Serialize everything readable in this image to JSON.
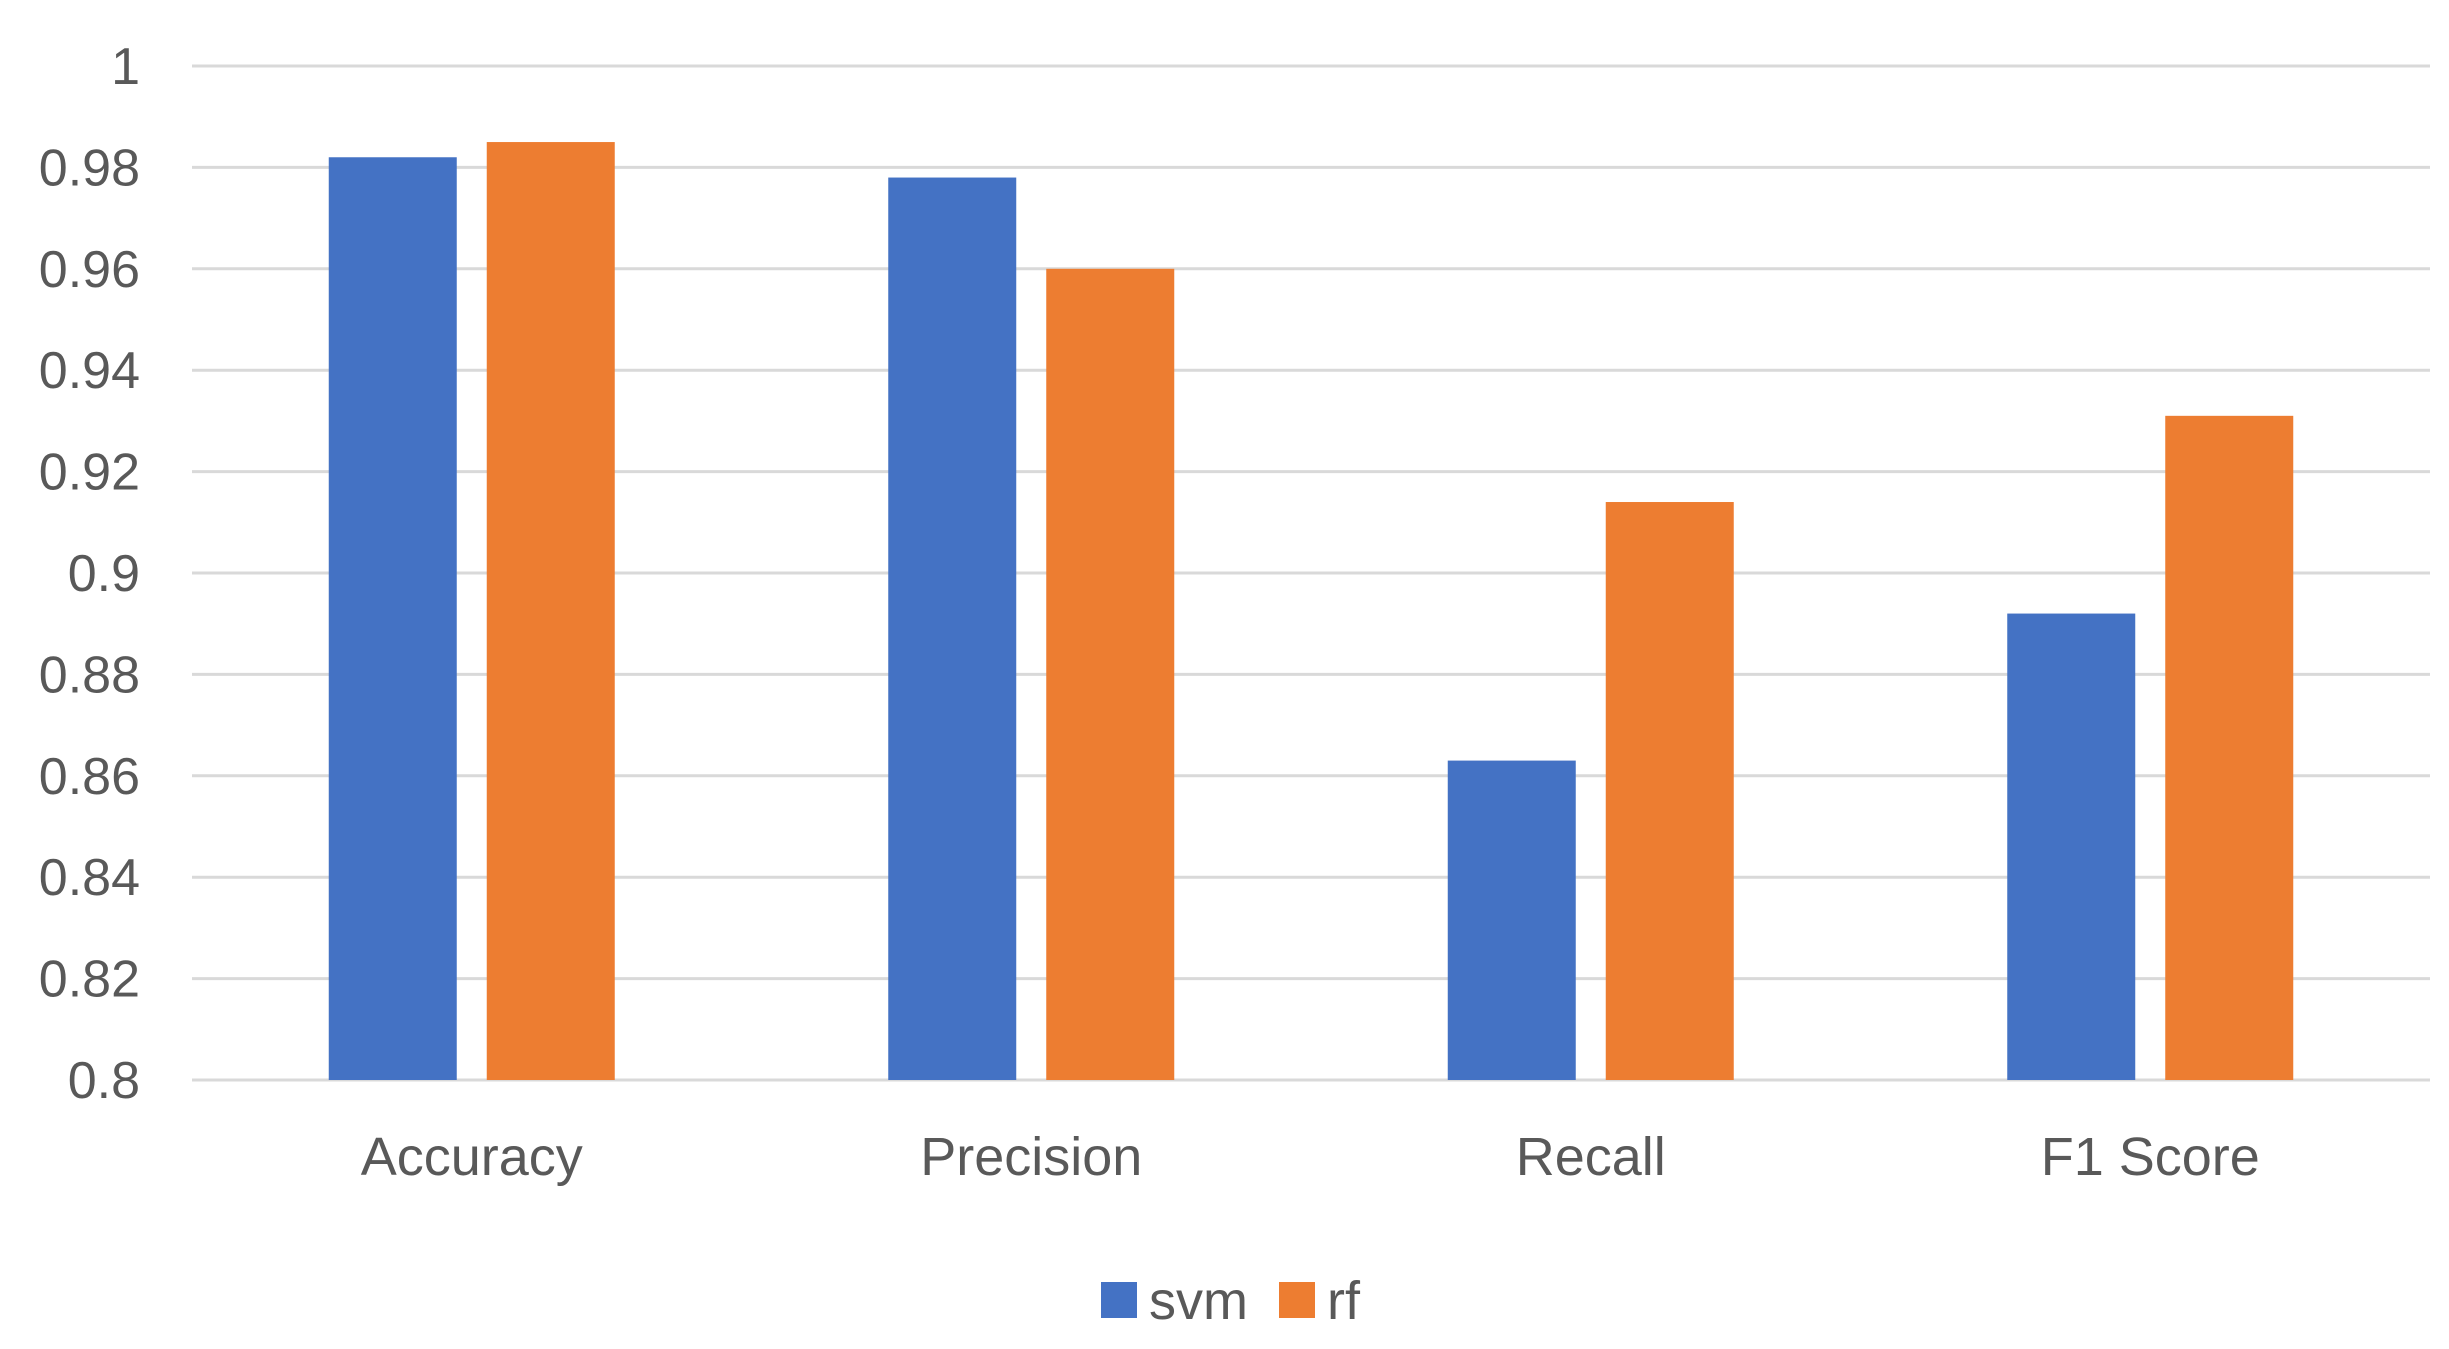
{
  "chart_data": {
    "type": "bar",
    "title": "",
    "xlabel": "",
    "ylabel": "",
    "categories": [
      "Accuracy",
      "Precision",
      "Recall",
      "F1 Score"
    ],
    "series": [
      {
        "name": "svm",
        "color": "#4472C4",
        "values": [
          0.982,
          0.978,
          0.863,
          0.892
        ]
      },
      {
        "name": "rf",
        "color": "#ED7D31",
        "values": [
          0.985,
          0.96,
          0.914,
          0.931
        ]
      }
    ],
    "ylim": [
      0.8,
      1.0
    ],
    "yticks": [
      "0.8",
      "0.82",
      "0.84",
      "0.86",
      "0.88",
      "0.9",
      "0.92",
      "0.94",
      "0.96",
      "0.98",
      "1"
    ],
    "grid": true,
    "legend_position": "bottom"
  }
}
